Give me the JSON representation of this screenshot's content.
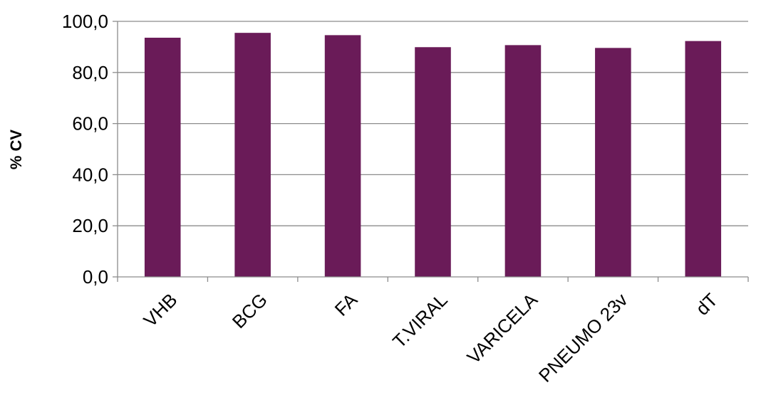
{
  "chart_data": {
    "type": "bar",
    "title": "",
    "xlabel": "",
    "ylabel": "% CV",
    "categories": [
      "VHB",
      "BCG",
      "FA",
      "T.VIRAL",
      "VARICELA",
      "PNEUMO 23v",
      "dT"
    ],
    "values": [
      93.6,
      95.5,
      94.6,
      89.9,
      90.7,
      89.6,
      92.3
    ],
    "ylim": [
      0,
      100
    ],
    "yticks": [
      "0,0",
      "20,0",
      "40,0",
      "60,0",
      "80,0",
      "100,0"
    ],
    "ytick_values": [
      0,
      20,
      40,
      60,
      80,
      100
    ],
    "grid": true,
    "legend": "none",
    "bar_color": "#6a1b58",
    "grid_color": "#8c8c8c"
  }
}
